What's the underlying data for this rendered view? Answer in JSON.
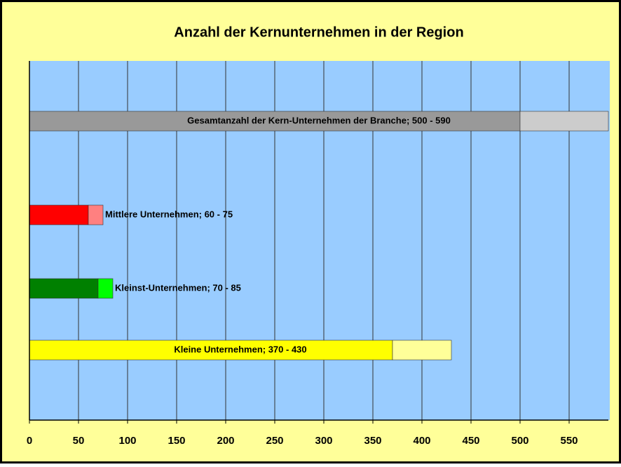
{
  "chart_data": {
    "type": "range_bar",
    "title": "Anzahl der Kernunternehmen in der Region",
    "categories": [
      "Gesamtanzahl der Kern-Unternehmen der Branche; 500 - 590",
      "Mittlere Unternehmen; 60 - 75",
      "Kleinst-Unternehmen; 70 - 85",
      "Kleine Unternehmen; 370 - 430"
    ],
    "series": [
      {
        "values": [
          500,
          60,
          70,
          370
        ],
        "colors": [
          "#999999",
          "#ff0000",
          "#008000",
          "#ffff00"
        ]
      },
      {
        "values": [
          90,
          15,
          15,
          60
        ],
        "colors": [
          "#cccccc",
          "#ff8080",
          "#00ff00",
          "#ffff99"
        ]
      }
    ],
    "xlim": [
      0,
      590
    ],
    "xticks": [
      0,
      50,
      100,
      150,
      200,
      250,
      300,
      350,
      400,
      450,
      500,
      550
    ],
    "grid": true
  }
}
